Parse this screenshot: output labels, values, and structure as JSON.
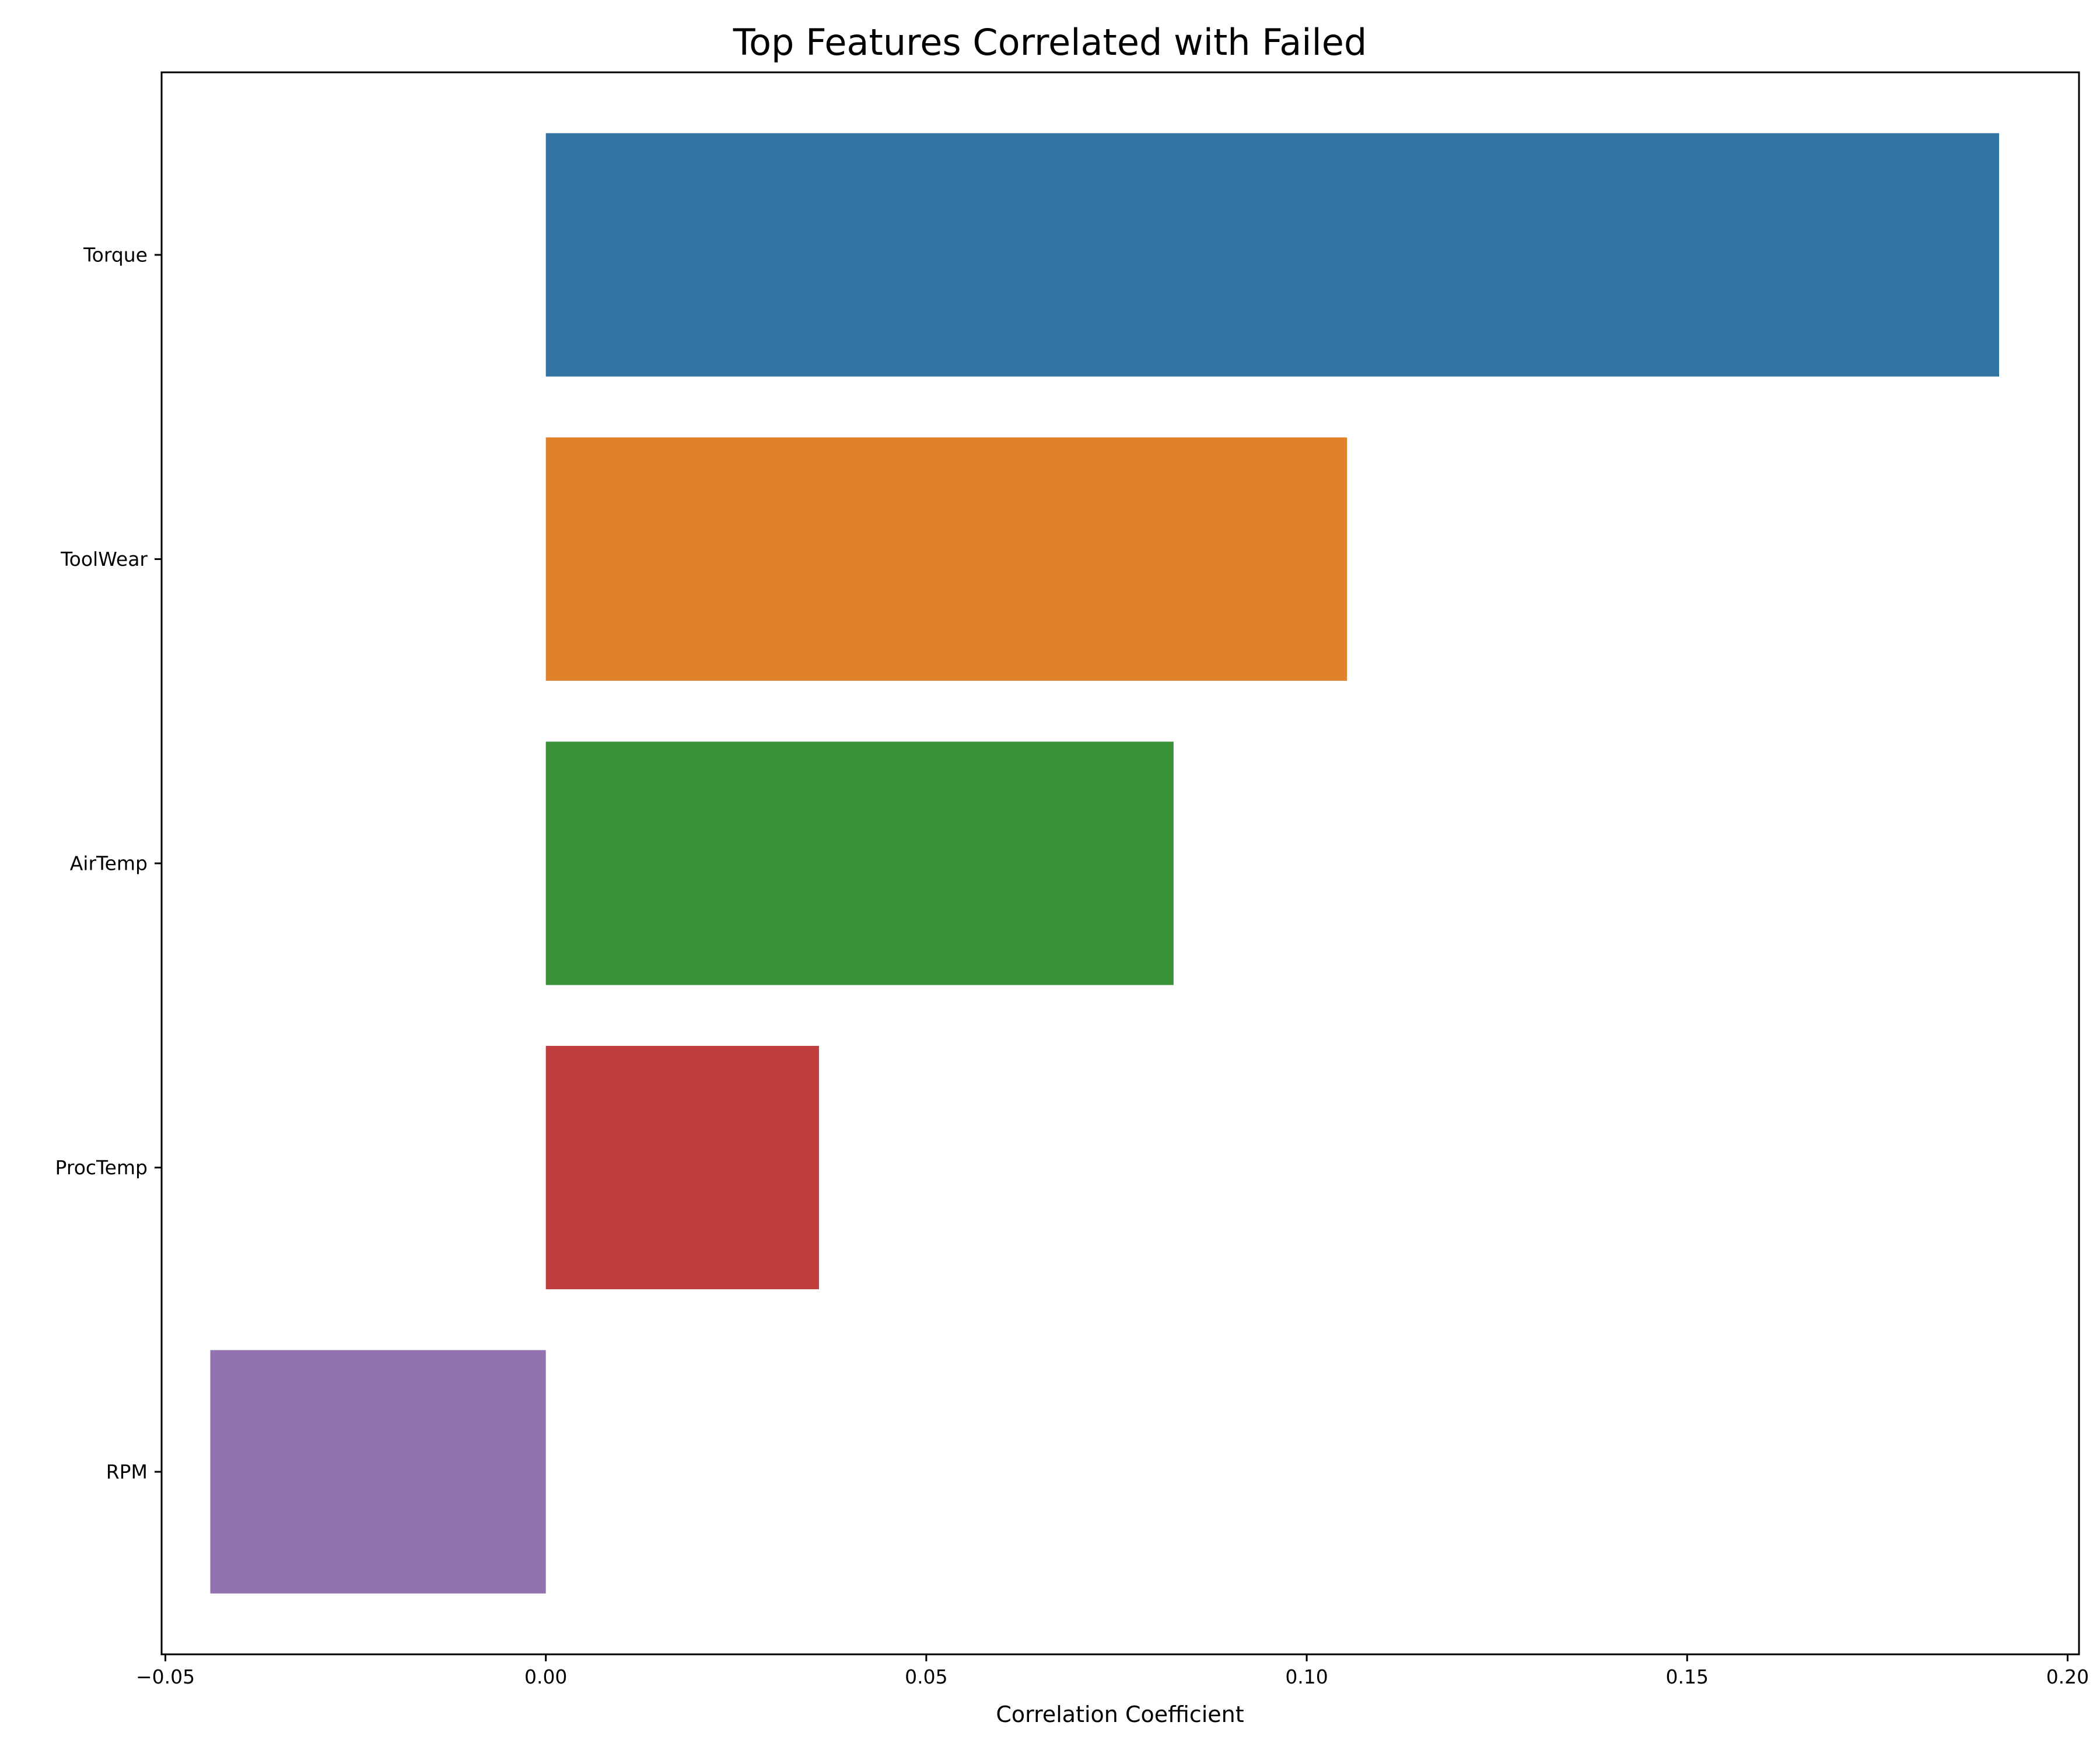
{
  "chart_data": {
    "type": "bar",
    "orientation": "horizontal",
    "title": "Top Features Correlated with Failed",
    "xlabel": "Correlation Coefficient",
    "ylabel": "",
    "categories": [
      "Torque",
      "ToolWear",
      "AirTemp",
      "ProcTemp",
      "RPM"
    ],
    "values": [
      0.191,
      0.1053,
      0.0825,
      0.0359,
      -0.0441
    ],
    "colors": [
      "#3274a1",
      "#e1812c",
      "#3a923a",
      "#c03d3e",
      "#9372b2"
    ],
    "xlim": [
      -0.0505,
      0.2015
    ],
    "xticks": [
      -0.05,
      0.0,
      0.05,
      0.1,
      0.15,
      0.2
    ],
    "xtick_labels": [
      "−0.05",
      "0.00",
      "0.05",
      "0.10",
      "0.15",
      "0.20"
    ],
    "grid": false,
    "legend": "none"
  }
}
